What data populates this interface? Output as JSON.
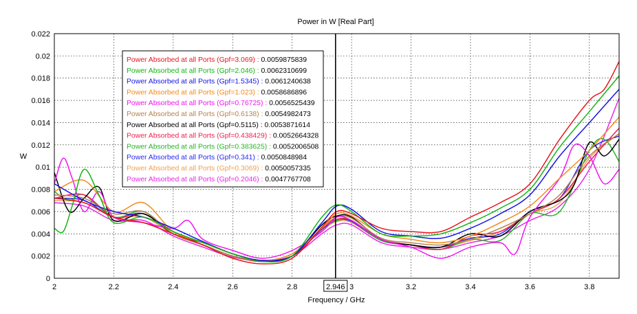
{
  "chart_data": {
    "type": "line",
    "title": "Power in W [Real Part]",
    "xlabel": "Frequency / GHz",
    "ylabel": "W",
    "xlim": [
      2.0,
      3.9
    ],
    "ylim": [
      0,
      0.022
    ],
    "xticks": [
      2,
      2.2,
      2.4,
      2.6,
      2.8,
      3,
      3.2,
      3.4,
      3.6,
      3.8
    ],
    "xtick_labels": [
      "2",
      "2.2",
      "2.4",
      "2.6",
      "2.8",
      "3",
      "3.2",
      "3.4",
      "3.6",
      "3.8"
    ],
    "yticks": [
      0,
      0.002,
      0.004,
      0.006,
      0.008,
      0.01,
      0.012,
      0.014,
      0.016,
      0.018,
      0.02,
      0.022
    ],
    "ytick_labels": [
      "0",
      "0.002",
      "0.004",
      "0.006",
      "0.008",
      "0.01",
      "0.012",
      "0.014",
      "0.016",
      "0.018",
      "0.02",
      "0.022"
    ],
    "grid": true,
    "legend_position": "top-left",
    "marker": {
      "x": 2.946,
      "label": "2.946"
    },
    "series": [
      {
        "name": "Power Absorbed at all Ports (Gpf=3.069)",
        "readout": "0.0059875839",
        "color": "#e8141e",
        "x": [
          2.0,
          2.1,
          2.2,
          2.3,
          2.4,
          2.5,
          2.6,
          2.7,
          2.8,
          2.9,
          2.95,
          3.0,
          3.1,
          3.2,
          3.3,
          3.4,
          3.5,
          3.6,
          3.7,
          3.8,
          3.85,
          3.9
        ],
        "y": [
          0.0072,
          0.0068,
          0.0055,
          0.005,
          0.004,
          0.003,
          0.0018,
          0.0013,
          0.0018,
          0.0046,
          0.006,
          0.0058,
          0.0045,
          0.0042,
          0.0042,
          0.0055,
          0.0068,
          0.0085,
          0.0125,
          0.016,
          0.017,
          0.0195
        ]
      },
      {
        "name": "Power Absorbed at all Ports (Gpf=2.046)",
        "readout": "0.0062310699",
        "color": "#14b414",
        "x": [
          2.0,
          2.03,
          2.06,
          2.1,
          2.15,
          2.2,
          2.3,
          2.4,
          2.5,
          2.6,
          2.7,
          2.8,
          2.9,
          2.95,
          3.0,
          3.1,
          3.2,
          3.3,
          3.4,
          3.5,
          3.6,
          3.7,
          3.8,
          3.9
        ],
        "y": [
          0.0045,
          0.0042,
          0.0065,
          0.0098,
          0.0075,
          0.005,
          0.0055,
          0.0042,
          0.0032,
          0.0022,
          0.0015,
          0.002,
          0.0055,
          0.0066,
          0.006,
          0.004,
          0.0038,
          0.004,
          0.005,
          0.0063,
          0.008,
          0.0118,
          0.015,
          0.0182
        ]
      },
      {
        "name": "Power Absorbed at all Ports (Gpf=1.5345)",
        "readout": "0.0061240638",
        "color": "#1414e6",
        "x": [
          2.0,
          2.1,
          2.2,
          2.3,
          2.4,
          2.5,
          2.6,
          2.7,
          2.8,
          2.9,
          2.95,
          3.0,
          3.1,
          3.2,
          3.3,
          3.4,
          3.5,
          3.6,
          3.7,
          3.8,
          3.9
        ],
        "y": [
          0.0085,
          0.007,
          0.006,
          0.0055,
          0.0045,
          0.0033,
          0.0022,
          0.0016,
          0.002,
          0.005,
          0.0065,
          0.0062,
          0.0042,
          0.0038,
          0.0036,
          0.0045,
          0.0058,
          0.0075,
          0.011,
          0.014,
          0.017
        ]
      },
      {
        "name": "Power Absorbed at all Ports (Gpf=1.023)",
        "readout": "0.0058686896",
        "color": "#f08a1e",
        "x": [
          2.0,
          2.1,
          2.2,
          2.3,
          2.4,
          2.5,
          2.6,
          2.7,
          2.8,
          2.9,
          2.95,
          3.0,
          3.1,
          3.2,
          3.3,
          3.4,
          3.5,
          3.6,
          3.7,
          3.8,
          3.9
        ],
        "y": [
          0.0078,
          0.0088,
          0.006,
          0.0068,
          0.0042,
          0.0032,
          0.0022,
          0.0016,
          0.0022,
          0.0045,
          0.0058,
          0.0056,
          0.004,
          0.0035,
          0.0032,
          0.0038,
          0.005,
          0.0065,
          0.009,
          0.0115,
          0.0145
        ]
      },
      {
        "name": "Power Absorbed at all Ports (Gpf=0.76725)",
        "readout": "0.0056525439",
        "color": "#f014f0",
        "x": [
          2.0,
          2.03,
          2.06,
          2.1,
          2.15,
          2.2,
          2.3,
          2.4,
          2.45,
          2.5,
          2.6,
          2.7,
          2.8,
          2.9,
          2.95,
          3.0,
          3.1,
          3.2,
          3.3,
          3.4,
          3.5,
          3.55,
          3.6,
          3.7,
          3.75,
          3.8,
          3.85,
          3.9
        ],
        "y": [
          0.0085,
          0.0108,
          0.009,
          0.006,
          0.0078,
          0.0055,
          0.005,
          0.0045,
          0.0052,
          0.0035,
          0.0025,
          0.0018,
          0.0025,
          0.0042,
          0.0055,
          0.0052,
          0.0035,
          0.0028,
          0.0018,
          0.0028,
          0.0032,
          0.0022,
          0.0055,
          0.009,
          0.012,
          0.011,
          0.0085,
          0.0098
        ]
      },
      {
        "name": "Power Absorbed at all Ports (Gpf=0.6138)",
        "readout": "0.0054982473",
        "color": "#b48250",
        "x": [
          2.0,
          2.1,
          2.2,
          2.3,
          2.4,
          2.5,
          2.6,
          2.7,
          2.8,
          2.9,
          2.95,
          3.0,
          3.1,
          3.2,
          3.3,
          3.4,
          3.5,
          3.6,
          3.7,
          3.8,
          3.9
        ],
        "y": [
          0.0075,
          0.0072,
          0.0058,
          0.006,
          0.004,
          0.003,
          0.002,
          0.0016,
          0.0022,
          0.0045,
          0.0055,
          0.0054,
          0.0036,
          0.0032,
          0.003,
          0.0035,
          0.0045,
          0.0058,
          0.0075,
          0.011,
          0.013
        ]
      },
      {
        "name": "Power Absorbed at all Ports (Gpf=0.5115)",
        "readout": "0.0053871614",
        "color": "#000000",
        "x": [
          2.0,
          2.05,
          2.1,
          2.15,
          2.2,
          2.3,
          2.4,
          2.5,
          2.6,
          2.7,
          2.8,
          2.9,
          2.95,
          3.0,
          3.1,
          3.2,
          3.3,
          3.4,
          3.5,
          3.6,
          3.7,
          3.75,
          3.8,
          3.85,
          3.9
        ],
        "y": [
          0.0095,
          0.006,
          0.0072,
          0.0082,
          0.0052,
          0.0058,
          0.004,
          0.0032,
          0.0022,
          0.0016,
          0.002,
          0.0048,
          0.0056,
          0.0055,
          0.0035,
          0.003,
          0.0028,
          0.004,
          0.0038,
          0.006,
          0.007,
          0.0085,
          0.0122,
          0.011,
          0.0125
        ]
      },
      {
        "name": "Power Absorbed at all Ports (Gpf=0.438429)",
        "readout": "0.0052664328",
        "color": "#f01e50",
        "x": [
          2.0,
          2.1,
          2.2,
          2.3,
          2.4,
          2.5,
          2.6,
          2.7,
          2.8,
          2.9,
          2.95,
          3.0,
          3.1,
          3.2,
          3.3,
          3.4,
          3.5,
          3.6,
          3.7,
          3.8,
          3.9
        ],
        "y": [
          0.0072,
          0.0075,
          0.0055,
          0.0058,
          0.0042,
          0.003,
          0.002,
          0.0015,
          0.002,
          0.0045,
          0.0053,
          0.0052,
          0.0035,
          0.003,
          0.0026,
          0.0038,
          0.0042,
          0.0058,
          0.0072,
          0.0105,
          0.0135
        ]
      },
      {
        "name": "Power Absorbed at all Ports (Gpf=0.383625)",
        "readout": "0.0052006508",
        "color": "#28b428",
        "x": [
          2.0,
          2.05,
          2.1,
          2.2,
          2.3,
          2.4,
          2.5,
          2.6,
          2.7,
          2.8,
          2.9,
          2.95,
          3.0,
          3.1,
          3.2,
          3.3,
          3.4,
          3.5,
          3.6,
          3.7,
          3.8,
          3.85,
          3.9
        ],
        "y": [
          0.0078,
          0.007,
          0.0075,
          0.0055,
          0.006,
          0.004,
          0.003,
          0.002,
          0.0015,
          0.002,
          0.0045,
          0.0052,
          0.0052,
          0.0034,
          0.003,
          0.0026,
          0.0035,
          0.0034,
          0.0058,
          0.006,
          0.0115,
          0.0125,
          0.0105
        ]
      },
      {
        "name": "Power Absorbed at all Ports (Gpf=0.341)",
        "readout": "0.0050848984",
        "color": "#2828f0",
        "x": [
          2.0,
          2.1,
          2.2,
          2.3,
          2.4,
          2.5,
          2.6,
          2.7,
          2.8,
          2.9,
          2.95,
          3.0,
          3.1,
          3.2,
          3.3,
          3.4,
          3.5,
          3.6,
          3.7,
          3.8,
          3.9
        ],
        "y": [
          0.0072,
          0.007,
          0.0055,
          0.0058,
          0.004,
          0.003,
          0.002,
          0.0016,
          0.002,
          0.0044,
          0.0052,
          0.0051,
          0.0034,
          0.003,
          0.0028,
          0.0036,
          0.004,
          0.006,
          0.0072,
          0.0115,
          0.0128
        ]
      },
      {
        "name": "Power Absorbed at all Ports (Gpf=0.3069)",
        "readout": "0.0050057335",
        "color": "#f0a050",
        "x": [
          2.0,
          2.1,
          2.2,
          2.3,
          2.4,
          2.5,
          2.6,
          2.7,
          2.8,
          2.9,
          2.95,
          3.0,
          3.1,
          3.2,
          3.3,
          3.4,
          3.5,
          3.6,
          3.7,
          3.8,
          3.9
        ],
        "y": [
          0.007,
          0.0068,
          0.0055,
          0.0055,
          0.004,
          0.003,
          0.002,
          0.0016,
          0.0022,
          0.0043,
          0.0051,
          0.005,
          0.0034,
          0.003,
          0.0028,
          0.0034,
          0.0042,
          0.0058,
          0.0068,
          0.0108,
          0.013
        ]
      },
      {
        "name": "Power Absorbed at all Ports (Gpf=0.2046)",
        "readout": "0.0047767708",
        "color": "#e628e6",
        "x": [
          2.0,
          2.1,
          2.2,
          2.3,
          2.4,
          2.5,
          2.6,
          2.7,
          2.8,
          2.9,
          2.95,
          3.0,
          3.1,
          3.2,
          3.3,
          3.4,
          3.5,
          3.6,
          3.7,
          3.8,
          3.9
        ],
        "y": [
          0.0068,
          0.0065,
          0.0052,
          0.0052,
          0.0038,
          0.0028,
          0.0019,
          0.0016,
          0.002,
          0.004,
          0.0048,
          0.0048,
          0.0032,
          0.0028,
          0.0026,
          0.0032,
          0.0038,
          0.0052,
          0.0065,
          0.0098,
          0.0162
        ]
      }
    ]
  }
}
